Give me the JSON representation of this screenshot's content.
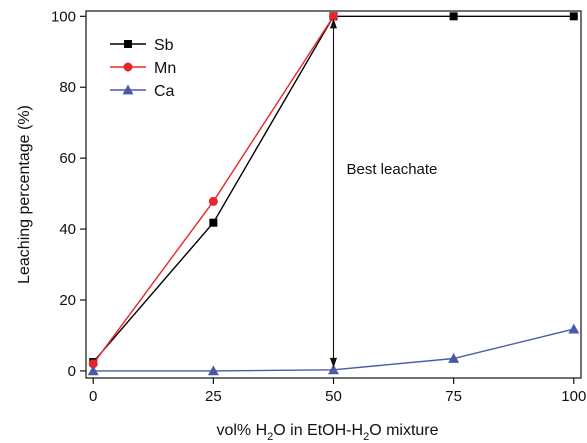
{
  "chart_data": {
    "type": "line",
    "x": [
      0,
      25,
      50,
      75,
      100
    ],
    "xlim": [
      -1.5,
      101.5
    ],
    "ylim": [
      -2,
      101.5
    ],
    "xticks": [
      0,
      25,
      50,
      75,
      100
    ],
    "yticks": [
      0,
      20,
      40,
      60,
      80,
      100
    ],
    "xlabel_parts": {
      "before": "vol% H",
      "sub1": "2",
      "middle": "O in EtOH-H",
      "sub2": "2",
      "after": "O mixture"
    },
    "ylabel": "Leaching percentage (%)",
    "grid": false,
    "legend_position": "top-left",
    "series": [
      {
        "name": "Sb",
        "color": "#000000",
        "marker": "square",
        "values": [
          2.5,
          41.8,
          100,
          100,
          100
        ]
      },
      {
        "name": "Mn",
        "color": "#e8262a",
        "marker": "circle",
        "values": [
          2.0,
          47.8,
          100,
          null,
          null
        ]
      },
      {
        "name": "Ca",
        "color": "#4a5aa8",
        "marker": "triangle",
        "values": [
          0,
          0,
          0.3,
          3.5,
          11.8
        ]
      }
    ],
    "annotation": {
      "text": "Best leachate",
      "x": 50,
      "y_from": 0.3,
      "y_to": 100
    }
  }
}
